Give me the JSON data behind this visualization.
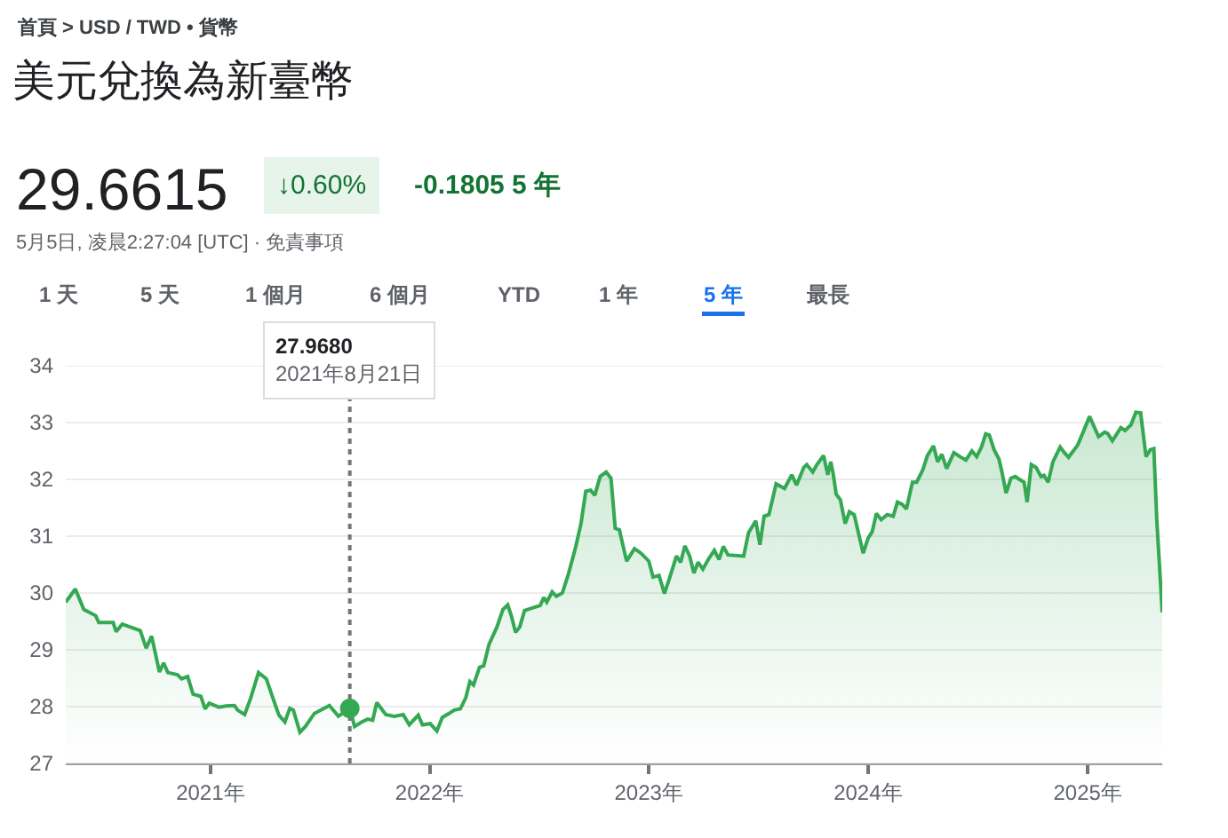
{
  "chart_data": {
    "type": "area",
    "title": "美元兌換為新臺幣",
    "annotations": [
      "首頁 > USD / TWD • 貨幣",
      "29.6615",
      "↓0.60%",
      "-0.1805 5 年",
      "5月5日, 凌晨2:27:04 [UTC] · 免責事項",
      "1 天",
      "5 天",
      "1 個月",
      "6 個月",
      "YTD",
      "1 年",
      "5 年",
      "最長"
    ],
    "x": [
      "2020-05-05",
      "2020-05-21",
      "2020-06-04",
      "2020-06-24",
      "2020-06-29",
      "2020-07-23",
      "2020-07-28",
      "2020-08-07",
      "2020-09-06",
      "2020-09-16",
      "2020-09-25",
      "2020-10-08",
      "2020-10-15",
      "2020-10-22",
      "2020-11-07",
      "2020-11-14",
      "2020-11-24",
      "2020-12-03",
      "2020-12-16",
      "2020-12-23",
      "2020-12-30",
      "2021-01-15",
      "2021-01-27",
      "2021-02-10",
      "2021-02-15",
      "2021-02-27",
      "2021-03-09",
      "2021-03-22",
      "2021-04-04",
      "2021-04-15",
      "2021-04-25",
      "2021-05-05",
      "2021-05-13",
      "2021-05-19",
      "2021-05-30",
      "2021-06-08",
      "2021-06-23",
      "2021-07-18",
      "2021-08-02",
      "2021-08-21",
      "2021-08-29",
      "2021-09-10",
      "2021-09-20",
      "2021-09-28",
      "2021-10-05",
      "2021-10-20",
      "2021-11-03",
      "2021-11-18",
      "2021-11-28",
      "2021-12-13",
      "2021-12-20",
      "2022-01-02",
      "2022-01-13",
      "2022-01-22",
      "2022-02-04",
      "2022-02-11",
      "2022-02-21",
      "2022-03-02",
      "2022-03-09",
      "2022-03-15",
      "2022-03-25",
      "2022-04-01",
      "2022-04-10",
      "2022-04-23",
      "2022-05-03",
      "2022-05-11",
      "2022-05-17",
      "2022-05-24",
      "2022-05-31",
      "2022-06-08",
      "2022-06-22",
      "2022-07-04",
      "2022-07-10",
      "2022-07-15",
      "2022-07-24",
      "2022-07-31",
      "2022-08-10",
      "2022-08-20",
      "2022-09-01",
      "2022-09-10",
      "2022-09-18",
      "2022-09-26",
      "2022-10-03",
      "2022-10-12",
      "2022-10-22",
      "2022-10-30",
      "2022-11-06",
      "2022-11-13",
      "2022-11-25",
      "2022-12-08",
      "2022-12-19",
      "2023-01-01",
      "2023-01-08",
      "2023-01-18",
      "2023-01-27",
      "2023-02-06",
      "2023-02-16",
      "2023-02-23",
      "2023-03-02",
      "2023-03-10",
      "2023-03-17",
      "2023-03-24",
      "2023-04-01",
      "2023-04-10",
      "2023-04-20",
      "2023-04-28",
      "2023-05-05",
      "2023-05-13",
      "2023-06-08",
      "2023-06-16",
      "2023-06-28",
      "2023-07-05",
      "2023-07-12",
      "2023-07-20",
      "2023-08-01",
      "2023-08-15",
      "2023-08-27",
      "2023-09-04",
      "2023-09-16",
      "2023-09-21",
      "2023-10-01",
      "2023-10-08",
      "2023-10-19",
      "2023-10-26",
      "2023-10-31",
      "2023-11-04",
      "2023-11-09",
      "2023-11-16",
      "2023-11-24",
      "2023-12-01",
      "2023-12-09",
      "2023-12-16",
      "2023-12-24",
      "2024-01-01",
      "2024-01-08",
      "2024-01-15",
      "2024-01-23",
      "2024-02-02",
      "2024-02-12",
      "2024-02-19",
      "2024-02-27",
      "2024-03-05",
      "2024-03-15",
      "2024-03-22",
      "2024-04-01",
      "2024-04-09",
      "2024-04-19",
      "2024-04-26",
      "2024-05-03",
      "2024-05-11",
      "2024-05-23",
      "2024-06-02",
      "2024-06-12",
      "2024-06-22",
      "2024-06-30",
      "2024-07-08",
      "2024-07-15",
      "2024-07-21",
      "2024-07-29",
      "2024-08-06",
      "2024-08-11",
      "2024-08-18",
      "2024-08-26",
      "2024-09-02",
      "2024-09-12",
      "2024-09-17",
      "2024-09-22",
      "2024-09-29",
      "2024-10-07",
      "2024-10-15",
      "2024-10-20",
      "2024-10-27",
      "2024-11-04",
      "2024-11-16",
      "2024-11-23",
      "2024-11-30",
      "2024-12-15",
      "2024-12-25",
      "2025-01-04",
      "2025-01-11",
      "2025-01-19",
      "2025-01-29",
      "2025-02-03",
      "2025-02-11",
      "2025-02-25",
      "2025-03-04",
      "2025-03-14",
      "2025-03-22",
      "2025-03-30",
      "2025-04-08",
      "2025-04-15",
      "2025-04-21",
      "2025-04-26",
      "2025-05-05"
    ],
    "values": [
      29.84,
      30.07,
      29.71,
      29.6,
      29.48,
      29.48,
      29.32,
      29.45,
      29.34,
      29.03,
      29.24,
      28.61,
      28.77,
      28.6,
      28.56,
      28.49,
      28.53,
      28.22,
      28.18,
      27.96,
      28.06,
      27.99,
      28.01,
      28.02,
      27.94,
      27.86,
      28.15,
      28.6,
      28.49,
      28.15,
      27.85,
      27.73,
      27.97,
      27.94,
      27.55,
      27.65,
      27.88,
      28.02,
      27.83,
      27.97,
      27.65,
      27.73,
      27.78,
      27.76,
      28.07,
      27.86,
      27.83,
      27.86,
      27.68,
      27.85,
      27.68,
      27.7,
      27.57,
      27.81,
      27.89,
      27.94,
      27.96,
      28.15,
      28.44,
      28.38,
      28.69,
      28.72,
      29.1,
      29.4,
      29.71,
      29.79,
      29.6,
      29.31,
      29.4,
      29.69,
      29.74,
      29.78,
      29.92,
      29.84,
      30.02,
      29.94,
      30.0,
      30.33,
      30.8,
      31.22,
      31.79,
      31.81,
      31.72,
      32.05,
      32.13,
      32.02,
      31.14,
      31.11,
      30.56,
      30.78,
      30.7,
      30.56,
      30.28,
      30.31,
      29.99,
      30.31,
      30.65,
      30.54,
      30.83,
      30.65,
      30.35,
      30.54,
      30.42,
      30.59,
      30.75,
      30.59,
      30.82,
      30.67,
      30.65,
      31.06,
      31.27,
      30.85,
      31.35,
      31.38,
      31.92,
      31.84,
      32.08,
      31.9,
      32.21,
      32.26,
      32.13,
      32.26,
      32.42,
      32.08,
      32.31,
      32.1,
      31.74,
      31.64,
      31.22,
      31.43,
      31.38,
      31.06,
      30.7,
      30.96,
      31.08,
      31.4,
      31.29,
      31.38,
      31.35,
      31.6,
      31.56,
      31.48,
      31.95,
      31.95,
      32.16,
      32.42,
      32.59,
      32.31,
      32.44,
      32.19,
      32.47,
      32.4,
      32.34,
      32.5,
      32.4,
      32.57,
      32.8,
      32.78,
      32.52,
      32.36,
      32.13,
      31.76,
      32.02,
      32.05,
      31.98,
      31.95,
      31.6,
      32.26,
      32.21,
      32.05,
      32.07,
      31.95,
      32.31,
      32.57,
      32.47,
      32.39,
      32.6,
      32.85,
      33.11,
      32.94,
      32.75,
      32.83,
      32.81,
      32.68,
      32.91,
      32.86,
      32.96,
      33.18,
      33.17,
      32.4,
      32.52,
      32.54,
      31.27,
      29.66
    ],
    "color": "#34a853",
    "xlim": [
      "2020-05-05",
      "2025-05-05"
    ],
    "xticks": [
      {
        "value": "2021-01-01",
        "label": "2021年"
      },
      {
        "value": "2022-01-01",
        "label": "2022年"
      },
      {
        "value": "2023-01-01",
        "label": "2023年"
      },
      {
        "value": "2024-01-01",
        "label": "2024年"
      },
      {
        "value": "2025-01-01",
        "label": "2025年"
      }
    ],
    "ylim": [
      27,
      34
    ],
    "yticks": [
      27,
      28,
      29,
      30,
      31,
      32,
      33,
      34
    ],
    "grid": "y",
    "ref_lines": [
      {
        "axis": "x",
        "value": "2021-08-21",
        "label": "27.9680\n2021年8月21日",
        "color": "#757575",
        "line_style": "dotted"
      }
    ]
  }
}
